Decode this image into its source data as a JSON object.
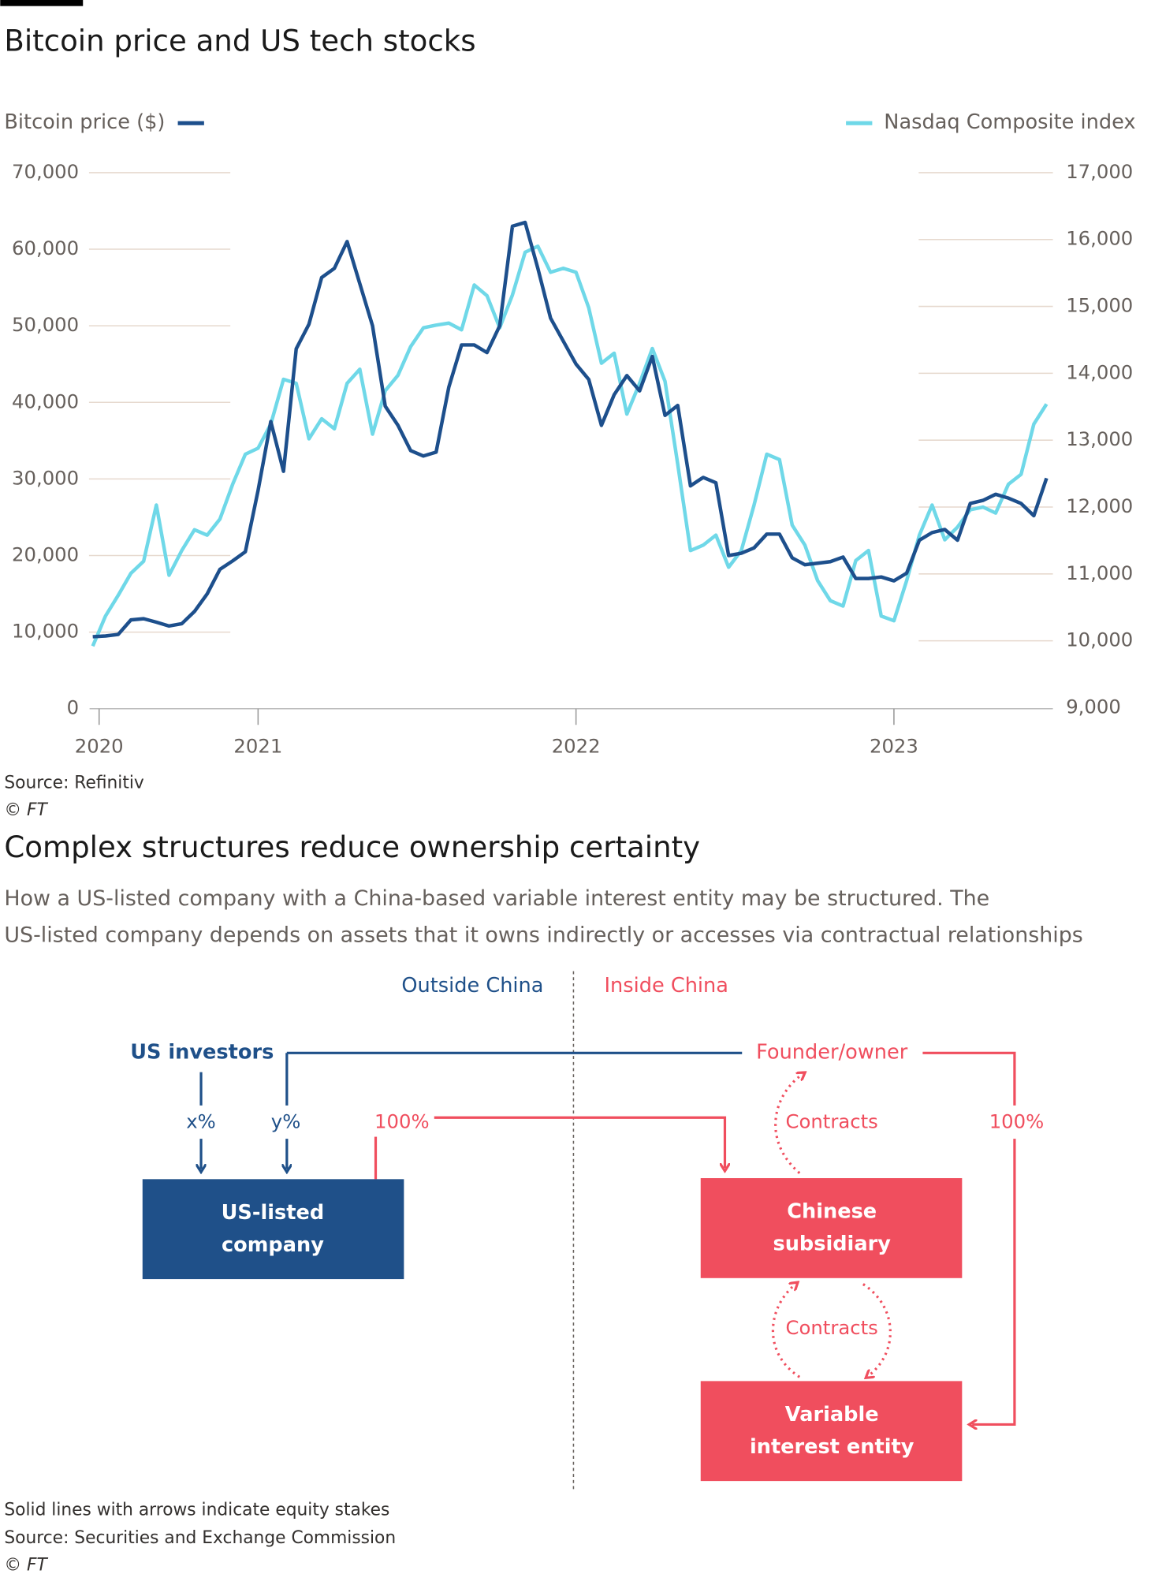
{
  "chart_data": {
    "type": "line",
    "title": "Bitcoin price and US tech stocks",
    "source": "Source: Refinitiv",
    "credit": "© FT",
    "x": [
      2020.48,
      2020.52,
      2020.56,
      2020.6,
      2020.64,
      2020.68,
      2020.72,
      2020.76,
      2020.8,
      2020.84,
      2020.88,
      2020.92,
      2020.96,
      2021,
      2021.04,
      2021.08,
      2021.12,
      2021.16,
      2021.2,
      2021.24,
      2021.28,
      2021.32,
      2021.36,
      2021.4,
      2021.44,
      2021.48,
      2021.52,
      2021.56,
      2021.6,
      2021.64,
      2021.68,
      2021.72,
      2021.76,
      2021.8,
      2021.84,
      2021.88,
      2021.92,
      2021.96,
      2022,
      2022.04,
      2022.08,
      2022.12,
      2022.16,
      2022.2,
      2022.24,
      2022.28,
      2022.32,
      2022.36,
      2022.4,
      2022.44,
      2022.48,
      2022.52,
      2022.56,
      2022.6,
      2022.64,
      2022.68,
      2022.72,
      2022.76,
      2022.8,
      2022.84,
      2022.88,
      2022.92,
      2022.96,
      2023,
      2023.04,
      2023.08,
      2023.12,
      2023.16,
      2023.2,
      2023.24,
      2023.28,
      2023.32,
      2023.36,
      2023.4,
      2023.44,
      2023.48
    ],
    "series": [
      {
        "name": "Bitcoin price ($)",
        "color": "#1d4f8c",
        "values": [
          9400,
          9500,
          9700,
          11600,
          11750,
          11300,
          10800,
          11100,
          12700,
          15000,
          18200,
          19300,
          20500,
          28500,
          37500,
          31000,
          47000,
          50200,
          56300,
          57500,
          61000,
          55500,
          50000,
          39500,
          37000,
          33700,
          33000,
          33500,
          42000,
          47500,
          47500,
          46500,
          50000,
          63000,
          63500,
          57500,
          51000,
          48000,
          45000,
          43000,
          37000,
          41000,
          43500,
          41500,
          46000,
          38300,
          39600,
          29100,
          30200,
          29500,
          20000,
          20300,
          21000,
          22800,
          22800,
          19700,
          18800,
          19000,
          19200,
          19800,
          17000,
          17000,
          17200,
          16700,
          17700,
          22000,
          23000,
          23400,
          22000,
          26800,
          27200,
          28000,
          27500,
          26800,
          25200,
          30100
        ]
      },
      {
        "name": "Nasdaq Composite index",
        "color": "#6fd8e8",
        "axis": "y2",
        "values": [
          9920,
          10370,
          10680,
          11010,
          11190,
          12030,
          10980,
          11350,
          11660,
          11580,
          11820,
          12340,
          12790,
          12880,
          13240,
          13910,
          13850,
          13020,
          13320,
          13170,
          13850,
          14060,
          13090,
          13740,
          13970,
          14400,
          14680,
          14720,
          14750,
          14650,
          15320,
          15160,
          14680,
          15170,
          15810,
          15900,
          15510,
          15570,
          15510,
          14980,
          14150,
          14300,
          13390,
          13850,
          14370,
          13880,
          12640,
          11350,
          11430,
          11580,
          11100,
          11350,
          12030,
          12790,
          12710,
          11730,
          11430,
          10900,
          10600,
          10520,
          11200,
          11350,
          10370,
          10300,
          10900,
          11580,
          12030,
          11510,
          11700,
          11960,
          12000,
          11910,
          12340,
          12490,
          13240,
          13540
        ]
      }
    ],
    "xlim": [
      2020.47,
      2023.5
    ],
    "xticks": [
      {
        "value": 2020.5,
        "label": "2020"
      },
      2021,
      2022,
      2023
    ],
    "ylim": [
      0,
      70000
    ],
    "yticks": [
      0,
      {
        "value": 10000,
        "label": "10,000"
      },
      {
        "value": 20000,
        "label": "20,000"
      },
      {
        "value": 30000,
        "label": "30,000"
      },
      {
        "value": 40000,
        "label": "40,000"
      },
      {
        "value": 50000,
        "label": "50,000"
      },
      {
        "value": 60000,
        "label": "60,000"
      },
      {
        "value": 70000,
        "label": "70,000"
      }
    ],
    "y2lim": [
      9000,
      17000
    ],
    "y2ticks": [
      {
        "value": 9000,
        "label": "9,000"
      },
      {
        "value": 10000,
        "label": "10,000"
      },
      {
        "value": 11000,
        "label": "11,000"
      },
      {
        "value": 12000,
        "label": "12,000"
      },
      {
        "value": 13000,
        "label": "13,000"
      },
      {
        "value": 14000,
        "label": "14,000"
      },
      {
        "value": 15000,
        "label": "15,000"
      },
      {
        "value": 16000,
        "label": "16,000"
      },
      {
        "value": 17000,
        "label": "17,000"
      }
    ],
    "grid": true
  },
  "diagram": {
    "title": "Complex structures reduce ownership certainty",
    "subtitle": [
      "How a US-listed company with a China-based variable interest entity may be structured. The",
      "US-listed company depends on assets that it owns indirectly or accesses via contractual relationships"
    ],
    "regions": [
      "Outside China",
      "Inside China"
    ],
    "nodes": {
      "investors": "US investors",
      "founder": "Founder/owner",
      "us_company": [
        "US-listed",
        "company"
      ],
      "subsidiary": [
        "Chinese",
        "subsidiary"
      ],
      "vie": [
        "Variable",
        "interest entity"
      ]
    },
    "edges": {
      "x": "x%",
      "y": "y%",
      "us_to_sub": "100%",
      "founder_to_vie": "100%",
      "founder_sub": "Contracts",
      "sub_vie": "Contracts"
    },
    "notes": [
      "Solid lines with arrows indicate equity stakes",
      "Source: Securities and Exchange Commission",
      "© FT"
    ]
  }
}
